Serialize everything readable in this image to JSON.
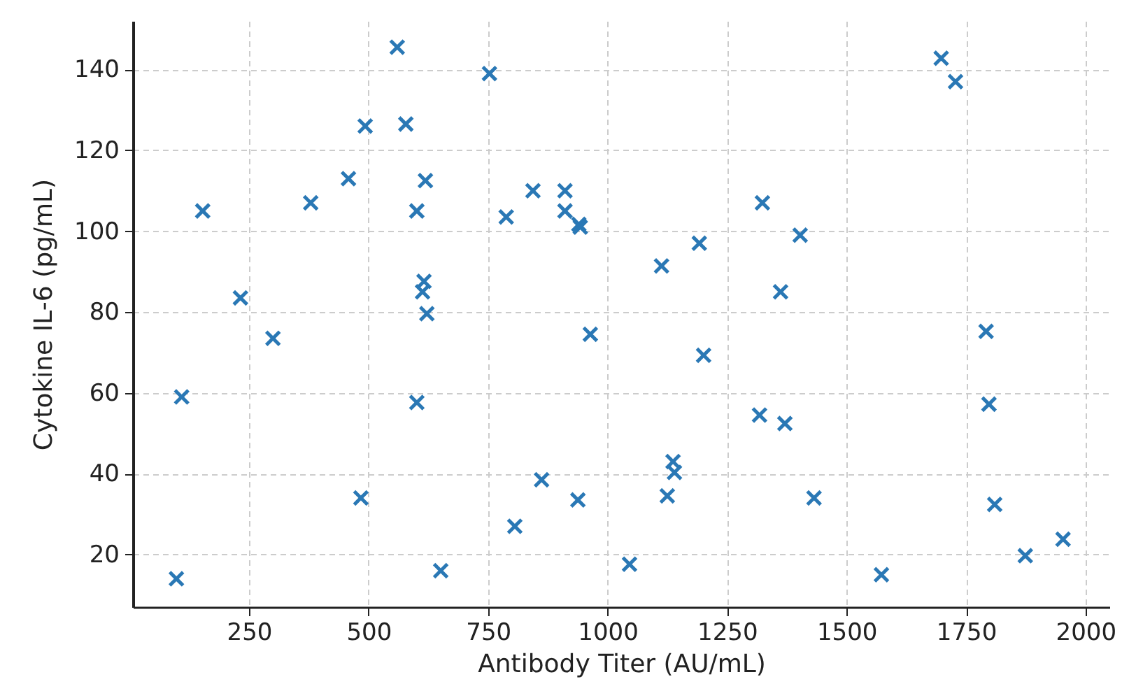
{
  "chart_data": {
    "type": "scatter",
    "xlabel": "Antibody Titer (AU/mL)",
    "ylabel": "Cytokine IL-6 (pg/mL)",
    "marker": "cross",
    "grid": true,
    "xlim": [
      7,
      2050
    ],
    "ylim": [
      7,
      152
    ],
    "xticks": [
      250,
      500,
      750,
      1000,
      1250,
      1500,
      1750,
      2000
    ],
    "yticks": [
      20,
      40,
      60,
      80,
      100,
      120,
      140
    ],
    "series": [
      {
        "color": "#2a78b5",
        "x": [
          98,
          109,
          153,
          232,
          300,
          379,
          458,
          484,
          493,
          560,
          578,
          651,
          616,
          613,
          601,
          619,
          622,
          601,
          753,
          788,
          806,
          844,
          862,
          911,
          911,
          940,
          943,
          938,
          964,
          1046,
          1113,
          1125,
          1137,
          1140,
          1192,
          1201,
          1318,
          1324,
          1362,
          1371,
          1403,
          1432,
          1573,
          1698,
          1728,
          1792,
          1798,
          1810,
          1874,
          1953
        ],
        "values": [
          14,
          59,
          105,
          83.5,
          73.5,
          107,
          113,
          34,
          126,
          145.5,
          126.5,
          16,
          87.6,
          85,
          105,
          112.5,
          79.6,
          57.6,
          139,
          103.5,
          27,
          110,
          38.5,
          110,
          105,
          101.7,
          101,
          33.5,
          74.5,
          17.6,
          91.4,
          34.5,
          43,
          40.3,
          97,
          69.3,
          54.5,
          107,
          85,
          52.4,
          99,
          34,
          15,
          142.8,
          137,
          75.2,
          57.2,
          32.4,
          19.7,
          23.8
        ]
      }
    ]
  }
}
